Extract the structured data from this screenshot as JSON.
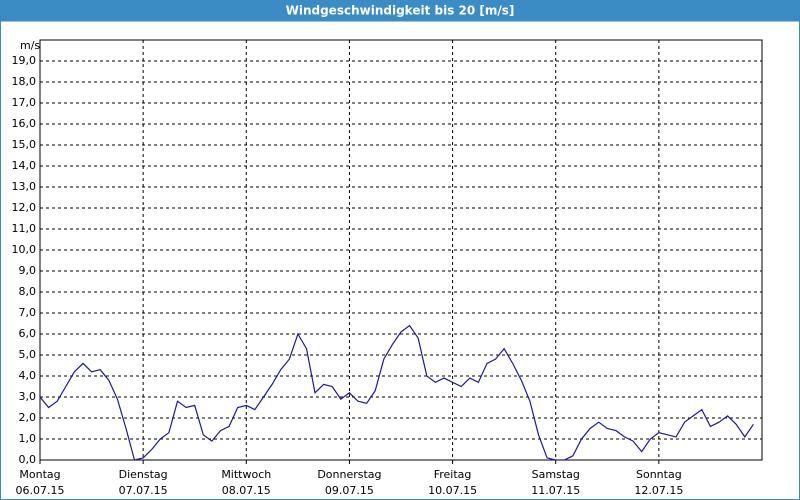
{
  "chart_data": {
    "type": "line",
    "title": "Windgeschwindigkeit bis 20 [m/s]",
    "y_label": "m/s",
    "x": [
      0,
      2,
      4,
      6,
      8,
      10,
      12,
      14,
      16,
      18,
      20,
      22,
      24,
      26,
      28,
      30,
      32,
      34,
      36,
      38,
      40,
      42,
      44,
      46,
      48,
      50,
      52,
      54,
      56,
      58,
      60,
      62,
      64,
      66,
      68,
      70,
      72,
      74,
      76,
      78,
      80,
      82,
      84,
      86,
      88,
      90,
      92,
      94,
      96,
      98,
      100,
      102,
      104,
      106,
      108,
      110,
      112,
      114,
      116,
      118,
      120,
      122,
      124,
      126,
      128,
      130,
      132,
      134,
      136,
      138,
      140,
      142,
      144,
      146,
      148,
      150,
      152,
      154,
      156,
      158,
      160,
      162,
      164,
      166
    ],
    "series": [
      {
        "name": "Windgeschwindigkeit",
        "color": "#1a1aa0",
        "values": [
          3.0,
          2.5,
          2.8,
          3.5,
          4.2,
          4.6,
          4.2,
          4.3,
          3.8,
          2.9,
          1.5,
          0.0,
          0.1,
          0.5,
          1.0,
          1.3,
          2.8,
          2.5,
          2.6,
          1.2,
          0.9,
          1.4,
          1.6,
          2.5,
          2.6,
          2.4,
          3.0,
          3.6,
          4.3,
          4.8,
          6.0,
          5.3,
          3.2,
          3.6,
          3.5,
          2.9,
          3.2,
          2.8,
          2.7,
          3.3,
          4.8,
          5.5,
          6.1,
          6.4,
          5.8,
          4.0,
          3.7,
          3.9,
          3.7,
          3.5,
          3.9,
          3.7,
          4.6,
          4.8,
          5.3,
          4.6,
          3.8,
          2.8,
          1.2,
          0.1,
          0.0,
          0.0,
          0.2,
          1.0,
          1.5,
          1.8,
          1.5,
          1.4,
          1.1,
          0.9,
          0.4,
          1.0,
          1.3,
          1.2,
          1.1,
          1.8,
          2.1,
          2.4,
          1.6,
          1.8,
          2.1,
          1.7,
          1.1,
          1.7
        ]
      }
    ],
    "xlim": [
      0,
      168
    ],
    "xticks": [
      {
        "value": 0,
        "label": "Montag"
      },
      {
        "value": 24,
        "label": "Dienstag"
      },
      {
        "value": 48,
        "label": "Mittwoch"
      },
      {
        "value": 72,
        "label": "Donnerstag"
      },
      {
        "value": 96,
        "label": "Freitag"
      },
      {
        "value": 120,
        "label": "Samstag"
      },
      {
        "value": 144,
        "label": "Sonntag"
      }
    ],
    "xtick_dates": [
      "06.07.15",
      "07.07.15",
      "08.07.15",
      "09.07.15",
      "10.07.15",
      "11.07.15",
      "12.07.15"
    ],
    "ylim": [
      0,
      20
    ],
    "yticks": [
      {
        "value": 0,
        "label": "0,0"
      },
      {
        "value": 1,
        "label": "1,0"
      },
      {
        "value": 2,
        "label": "2,0"
      },
      {
        "value": 3,
        "label": "3,0"
      },
      {
        "value": 4,
        "label": "4,0"
      },
      {
        "value": 5,
        "label": "5,0"
      },
      {
        "value": 6,
        "label": "6,0"
      },
      {
        "value": 7,
        "label": "7,0"
      },
      {
        "value": 8,
        "label": "8,0"
      },
      {
        "value": 9,
        "label": "9,0"
      },
      {
        "value": 10,
        "label": "10,0"
      },
      {
        "value": 11,
        "label": "11,0"
      },
      {
        "value": 12,
        "label": "12,0"
      },
      {
        "value": 13,
        "label": "13,0"
      },
      {
        "value": 14,
        "label": "14,0"
      },
      {
        "value": 15,
        "label": "15,0"
      },
      {
        "value": 16,
        "label": "16,0"
      },
      {
        "value": 17,
        "label": "17,0"
      },
      {
        "value": 18,
        "label": "18,0"
      },
      {
        "value": 19,
        "label": "19,0"
      }
    ],
    "grid": true
  }
}
